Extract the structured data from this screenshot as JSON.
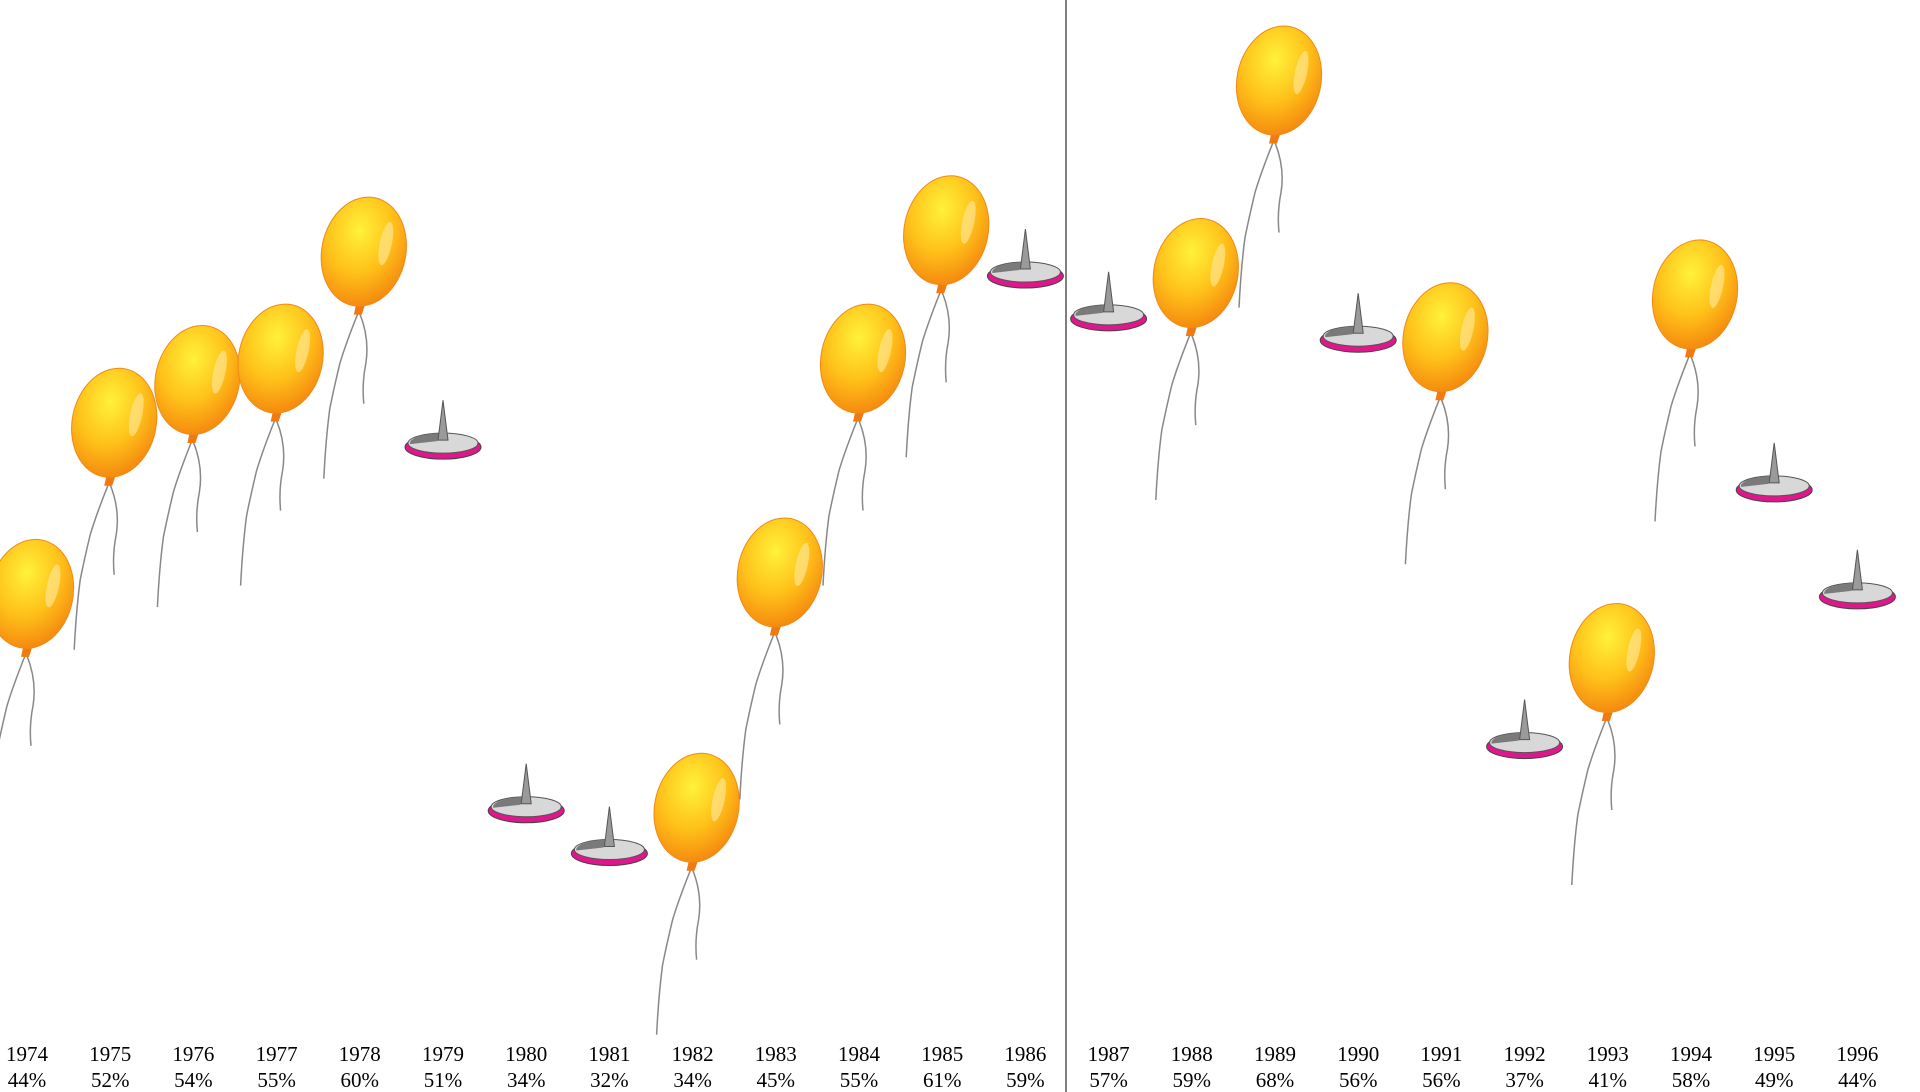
{
  "chart_data": {
    "type": "pictogram",
    "categories": [
      "1974",
      "1975",
      "1976",
      "1977",
      "1978",
      "1979",
      "1980",
      "1981",
      "1982",
      "1983",
      "1984",
      "1985",
      "1986",
      "1987",
      "1988",
      "1989",
      "1990",
      "1991",
      "1992",
      "1993",
      "1994",
      "1995",
      "1996"
    ],
    "values": [
      44,
      52,
      54,
      55,
      60,
      51,
      34,
      32,
      34,
      45,
      55,
      61,
      59,
      57,
      59,
      68,
      56,
      56,
      37,
      41,
      58,
      49,
      44
    ],
    "value_labels": [
      "44%",
      "52%",
      "54%",
      "55%",
      "60%",
      "51%",
      "34%",
      "32%",
      "34%",
      "45%",
      "55%",
      "61%",
      "59%",
      "57%",
      "59%",
      "68%",
      "56%",
      "56%",
      "37%",
      "41%",
      "58%",
      "49%",
      "44%"
    ],
    "markers": [
      "balloon",
      "balloon",
      "balloon",
      "balloon",
      "balloon",
      "pin",
      "pin",
      "pin",
      "balloon",
      "balloon",
      "balloon",
      "balloon",
      "pin",
      "pin",
      "balloon",
      "balloon",
      "pin",
      "balloon",
      "pin",
      "balloon",
      "balloon",
      "pin",
      "pin"
    ],
    "ylim": [
      23,
      72
    ]
  }
}
